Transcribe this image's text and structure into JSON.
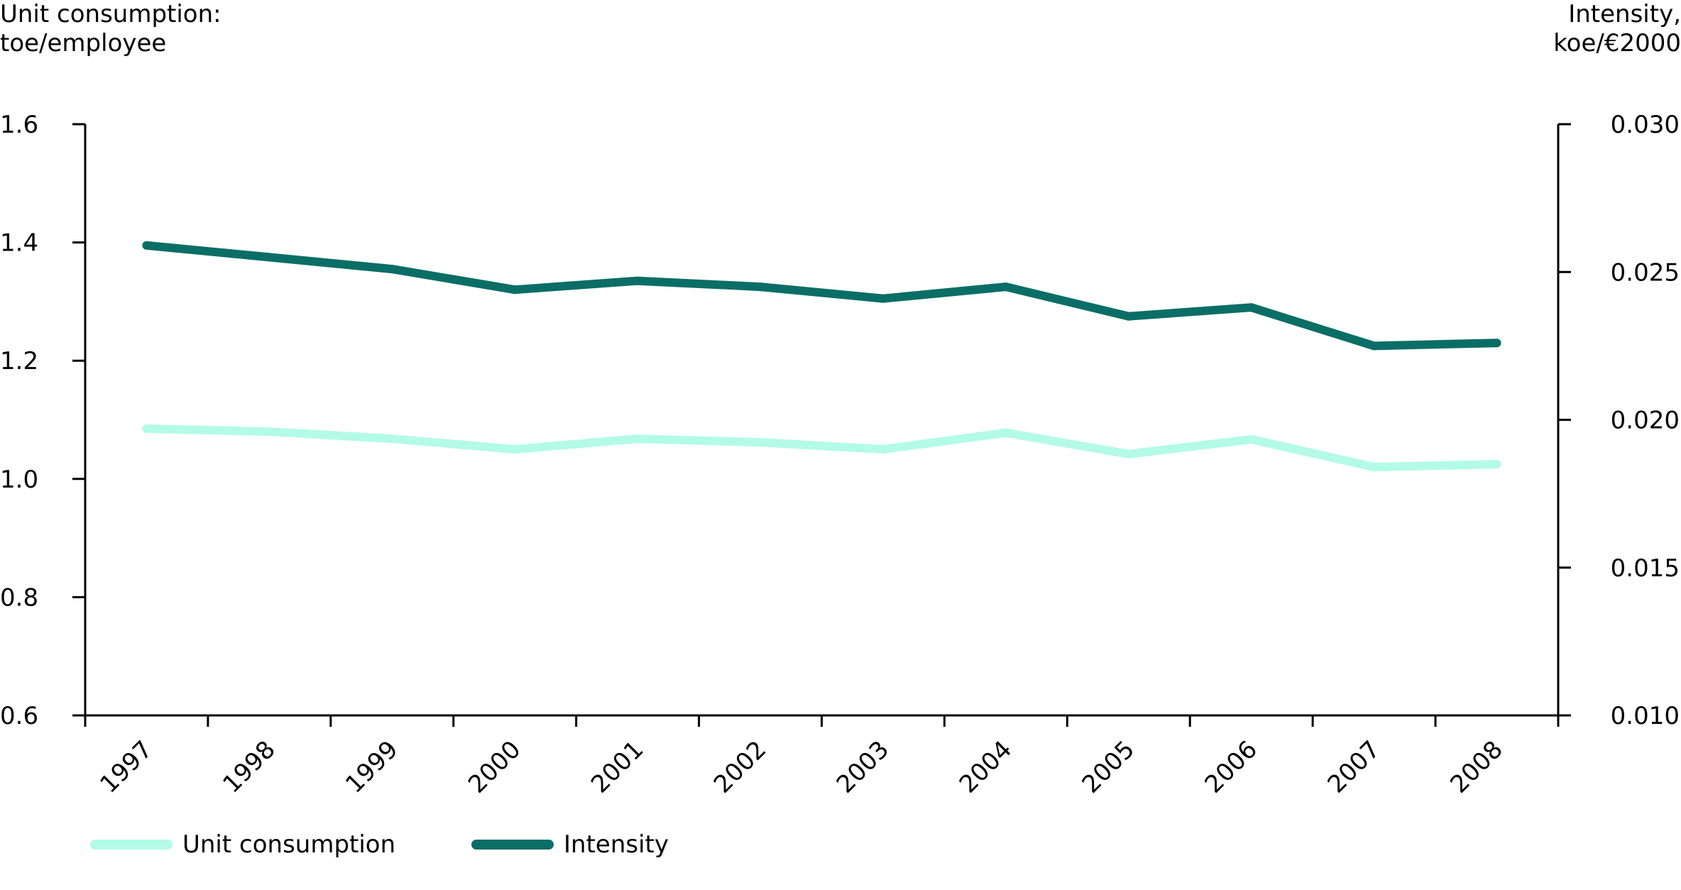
{
  "chart_data": {
    "type": "line",
    "categories": [
      "1997",
      "1998",
      "1999",
      "2000",
      "2001",
      "2002",
      "2003",
      "2004",
      "2005",
      "2006",
      "2007",
      "2008"
    ],
    "y_left_label": [
      "Unit consumption:",
      "toe/employee"
    ],
    "y_right_label": [
      "Intensity,",
      "koe/€2000"
    ],
    "y_left_range": [
      0.6,
      1.6
    ],
    "y_left_ticks": [
      "0.6",
      "0.8",
      "1.0",
      "1.2",
      "1.4",
      "1.6"
    ],
    "y_right_range": [
      0.01,
      0.03
    ],
    "y_right_ticks": [
      "0.010",
      "0.015",
      "0.020",
      "0.025",
      "0.030"
    ],
    "grid": false,
    "legend_position": "bottom-left",
    "series": [
      {
        "name": "Unit consumption",
        "axis": "left",
        "color": "#b3fbe6",
        "values": [
          1.085,
          1.08,
          1.068,
          1.05,
          1.068,
          1.062,
          1.05,
          1.078,
          1.042,
          1.067,
          1.02,
          1.025
        ]
      },
      {
        "name": "Intensity",
        "axis": "right",
        "color": "#0b6e66",
        "values": [
          0.0259,
          0.0255,
          0.0251,
          0.0244,
          0.0247,
          0.0245,
          0.0241,
          0.0245,
          0.0235,
          0.0238,
          0.0225,
          0.0226
        ]
      }
    ]
  }
}
